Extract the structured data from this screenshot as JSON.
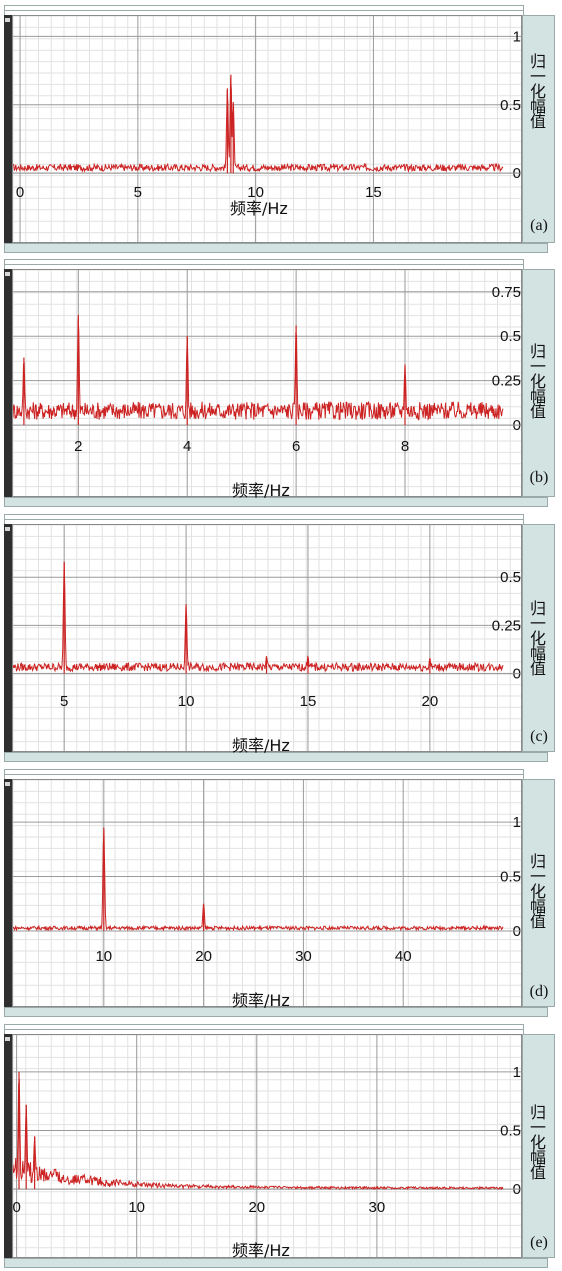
{
  "chart_data": [
    {
      "type": "line",
      "panel_label": "(a)",
      "xlabel": "频率/Hz",
      "ylabel": "归一化幅值",
      "xlim": [
        -0.3,
        20.5
      ],
      "ylim": [
        -0.05,
        1.12
      ],
      "xticks": [
        "0",
        "5",
        "10",
        "15"
      ],
      "yticks": [
        "0",
        "0.5",
        "1"
      ],
      "peaks": [
        {
          "x": 8.8,
          "y": 0.62
        },
        {
          "x": 8.95,
          "y": 0.72
        },
        {
          "x": 9.05,
          "y": 0.52
        }
      ],
      "noise_level": 0.06,
      "grid": true,
      "line_color": "#cc2222"
    },
    {
      "type": "line",
      "panel_label": "(b)",
      "xlabel": "频率/Hz",
      "ylabel": "归一化幅值",
      "xlim": [
        0.8,
        9.8
      ],
      "ylim": [
        -0.05,
        0.85
      ],
      "xticks": [
        "2",
        "4",
        "6",
        "8"
      ],
      "yticks": [
        "0",
        "0.25",
        "0.5",
        "0.75"
      ],
      "peaks": [
        {
          "x": 2.0,
          "y": 0.62
        },
        {
          "x": 4.0,
          "y": 0.5
        },
        {
          "x": 6.0,
          "y": 0.56
        },
        {
          "x": 8.0,
          "y": 0.34
        },
        {
          "x": 1.0,
          "y": 0.38
        }
      ],
      "noise_level": 0.12,
      "grid": true,
      "line_color": "#cc2222"
    },
    {
      "type": "line",
      "panel_label": "(c)",
      "xlabel": "频率/Hz",
      "ylabel": "归一化幅值",
      "xlim": [
        2.9,
        23.0
      ],
      "ylim": [
        -0.08,
        0.75
      ],
      "xticks": [
        "5",
        "10",
        "15",
        "20"
      ],
      "yticks": [
        "0",
        "0.25",
        "0.5"
      ],
      "peaks": [
        {
          "x": 5.0,
          "y": 0.58
        },
        {
          "x": 10.0,
          "y": 0.36
        },
        {
          "x": 15.0,
          "y": 0.09
        },
        {
          "x": 20.0,
          "y": 0.08
        },
        {
          "x": 13.3,
          "y": 0.09
        }
      ],
      "noise_level": 0.05,
      "grid": true,
      "line_color": "#cc2222"
    },
    {
      "type": "line",
      "panel_label": "(d)",
      "xlabel": "频率/Hz",
      "ylabel": "归一化幅值",
      "xlim": [
        0.9,
        50.0
      ],
      "ylim": [
        -0.12,
        1.35
      ],
      "xticks": [
        "10",
        "20",
        "30",
        "40"
      ],
      "yticks": [
        "0",
        "0.5",
        "1"
      ],
      "peaks": [
        {
          "x": 10.0,
          "y": 0.95
        },
        {
          "x": 20.0,
          "y": 0.25
        }
      ],
      "noise_level": 0.04,
      "grid": true,
      "line_color": "#cc2222"
    },
    {
      "type": "line",
      "panel_label": "(e)",
      "xlabel": "频率/Hz",
      "ylabel": "归一化幅值",
      "xlim": [
        -0.3,
        40.5
      ],
      "ylim": [
        -0.05,
        1.28
      ],
      "xticks": [
        "0",
        "10",
        "20",
        "30"
      ],
      "yticks": [
        "0",
        "0.5",
        "1"
      ],
      "peaks": [
        {
          "x": 0.2,
          "y": 1.0
        },
        {
          "x": 0.8,
          "y": 0.72
        },
        {
          "x": 1.5,
          "y": 0.45
        }
      ],
      "noise_level": 0.2,
      "decay": true,
      "grid": true,
      "line_color": "#cc2222"
    }
  ]
}
